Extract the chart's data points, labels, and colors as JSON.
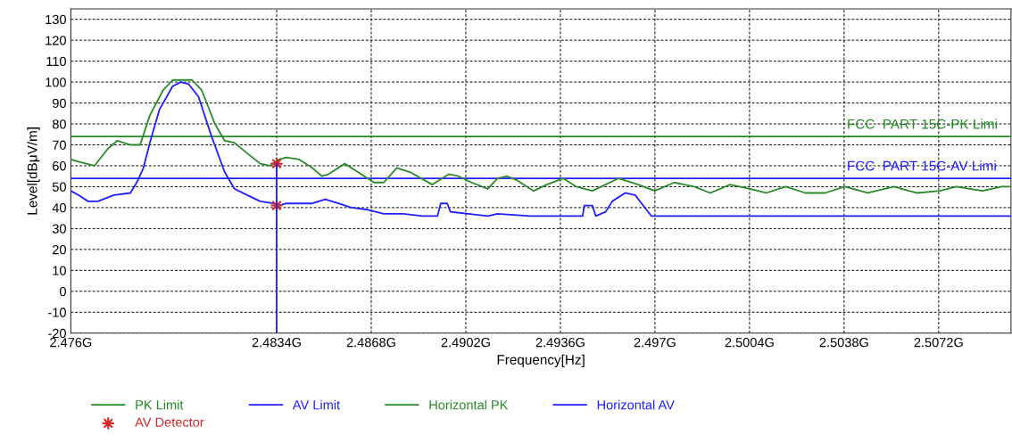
{
  "chart_data": {
    "type": "line",
    "xlabel": "Frequency[Hz]",
    "ylabel": "Level[dBμV/m]",
    "xlim": [
      2.476,
      2.5098
    ],
    "ylim": [
      -20,
      135
    ],
    "xticks": [
      {
        "value": 2.476,
        "label": "2.476G"
      },
      {
        "value": 2.4834,
        "label": "2.4834G"
      },
      {
        "value": 2.4868,
        "label": "2.4868G"
      },
      {
        "value": 2.4902,
        "label": "2.4902G"
      },
      {
        "value": 2.4936,
        "label": "2.4936G"
      },
      {
        "value": 2.497,
        "label": "2.497G"
      },
      {
        "value": 2.5004,
        "label": "2.5004G"
      },
      {
        "value": 2.5038,
        "label": "2.5038G"
      },
      {
        "value": 2.5072,
        "label": "2.5072G"
      }
    ],
    "yticks": [
      -20,
      -10,
      0,
      10,
      20,
      30,
      40,
      50,
      60,
      70,
      80,
      90,
      100,
      110,
      120,
      130
    ],
    "grid": true,
    "legend": "bottom",
    "series": [
      {
        "name": "PK Limit",
        "color": "#1e8c1e",
        "x": [
          2.476,
          2.5098
        ],
        "values": [
          74,
          74
        ]
      },
      {
        "name": "AV Limit",
        "color": "#1f1fff",
        "x": [
          2.476,
          2.5098
        ],
        "values": [
          54,
          54
        ]
      },
      {
        "name": "Horizontal PK",
        "color": "#2a8a2a",
        "x": [
          2.476,
          2.47627,
          2.47685,
          2.47732,
          2.47767,
          2.47814,
          2.47849,
          2.47884,
          2.47931,
          2.47966,
          2.48036,
          2.48071,
          2.48118,
          2.48153,
          2.48188,
          2.48234,
          2.48281,
          2.48316,
          2.48348,
          2.48375,
          2.48421,
          2.48468,
          2.48503,
          2.48527,
          2.48585,
          2.48632,
          2.4869,
          2.48725,
          2.48772,
          2.48819,
          2.489,
          2.48959,
          2.48994,
          2.49041,
          2.49099,
          2.49134,
          2.49169,
          2.49205,
          2.49264,
          2.49311,
          2.4937,
          2.49417,
          2.49475,
          2.4957,
          2.4964,
          2.49699,
          2.4977,
          2.49841,
          2.49899,
          2.4997,
          2.50041,
          2.501,
          2.5017,
          2.50241,
          2.50312,
          2.50382,
          2.50465,
          2.50559,
          2.50641,
          2.50724,
          2.50783,
          2.50877,
          2.50947,
          2.5098
        ],
        "values": [
          63,
          62,
          60,
          68,
          72,
          70,
          70,
          84,
          96,
          101,
          101,
          96,
          80,
          72,
          71,
          66,
          61,
          60,
          63,
          64,
          63,
          59,
          55,
          56,
          61,
          57,
          52,
          52,
          59,
          57,
          51,
          56,
          55,
          52,
          49,
          54,
          55,
          53,
          48,
          51,
          54,
          50,
          48,
          54,
          51,
          48,
          52,
          50,
          47,
          51,
          49,
          47,
          50,
          47,
          47,
          50,
          47,
          50,
          47,
          48,
          50,
          48,
          50,
          50
        ]
      },
      {
        "name": "Horizontal AV",
        "color": "#1f1fff",
        "x": [
          2.476,
          2.47627,
          2.47662,
          2.47697,
          2.47755,
          2.47814,
          2.47837,
          2.47861,
          2.47884,
          2.47919,
          2.47966,
          2.47995,
          2.48024,
          2.48059,
          2.48106,
          2.48153,
          2.48188,
          2.48234,
          2.48281,
          2.48328,
          2.48348,
          2.48375,
          2.48421,
          2.48468,
          2.48515,
          2.48562,
          2.48608,
          2.48667,
          2.48725,
          2.48795,
          2.48865,
          2.48918,
          2.4893,
          2.48953,
          2.48965,
          2.49029,
          2.49099,
          2.49134,
          2.49252,
          2.49358,
          2.4944,
          2.49446,
          2.49475,
          2.49487,
          2.49523,
          2.49546,
          2.49593,
          2.49629,
          2.49652,
          2.49687,
          2.49782,
          2.49958,
          2.50076,
          2.50312,
          2.50547,
          2.50783,
          2.5098
        ],
        "values": [
          48,
          46,
          43,
          43,
          46,
          47,
          52,
          59,
          71,
          87,
          98,
          100,
          99,
          93,
          74,
          57,
          49,
          46,
          43,
          42,
          41,
          42,
          42,
          42,
          44,
          42,
          40,
          39,
          37,
          37,
          36,
          36,
          42,
          42,
          38,
          37,
          36,
          37,
          36,
          36,
          36,
          41,
          41,
          36,
          38,
          43,
          47,
          46,
          42,
          36,
          36,
          36,
          36,
          36,
          36,
          36,
          36
        ]
      },
      {
        "name": "AV Detector",
        "type": "scatter",
        "color": "#d42828",
        "marker": "star",
        "x": [
          2.4834,
          2.4834
        ],
        "values": [
          61,
          41
        ]
      },
      {
        "color": "#1f1fff",
        "x": [
          2.4834,
          2.4834
        ],
        "values": [
          -20,
          61
        ]
      }
    ],
    "annotations": [
      {
        "text": "FCC  PART 15C-PK Limi",
        "x": 2.5039,
        "y": 74
      },
      {
        "text": "FCC  PART 15C-AV Limi",
        "x": 2.5039,
        "y": 54
      }
    ]
  }
}
